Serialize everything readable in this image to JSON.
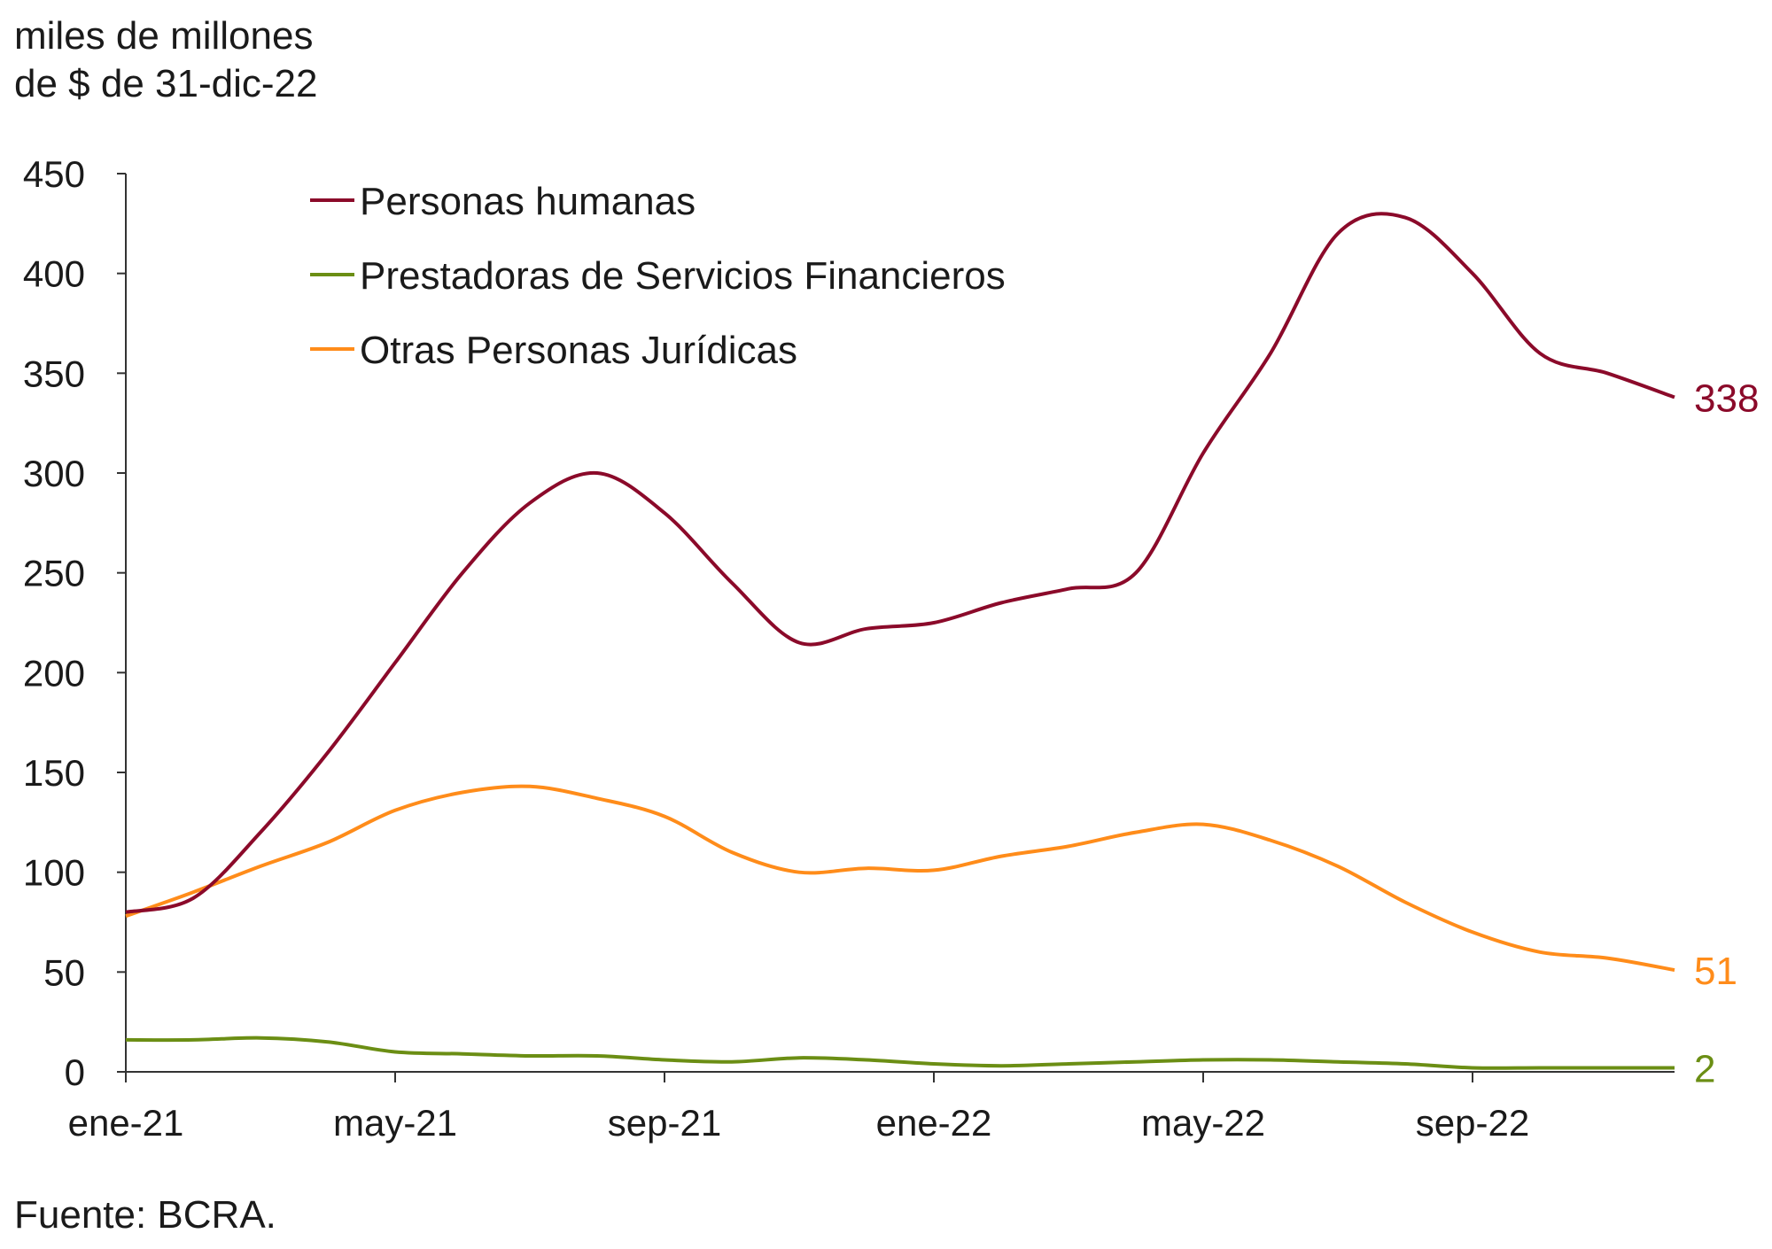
{
  "chart_data": {
    "type": "line",
    "unit_label_line1": "miles de millones",
    "unit_label_line2": "de $ de 31-dic-22",
    "source": "Fuente: BCRA.",
    "ylim": [
      0,
      450
    ],
    "yticks": [
      0,
      50,
      100,
      150,
      200,
      250,
      300,
      350,
      400,
      450
    ],
    "x_start": "2021-01",
    "x_end": "2022-12",
    "xtick_labels": [
      "ene-21",
      "may-21",
      "sep-21",
      "ene-22",
      "may-22",
      "sep-22"
    ],
    "grid": false,
    "legend_position": "top-left",
    "x": [
      "ene-21",
      "feb-21",
      "mar-21",
      "abr-21",
      "may-21",
      "jun-21",
      "jul-21",
      "ago-21",
      "sep-21",
      "oct-21",
      "nov-21",
      "dic-21",
      "ene-22",
      "feb-22",
      "mar-22",
      "abr-22",
      "may-22",
      "jun-22",
      "jul-22",
      "ago-22",
      "sep-22",
      "oct-22",
      "nov-22",
      "dic-22"
    ],
    "series": [
      {
        "name": "Personas humanas",
        "color": "#8b0a2a",
        "end_label": "338",
        "values": [
          80,
          87,
          120,
          160,
          205,
          250,
          285,
          300,
          280,
          245,
          215,
          222,
          225,
          235,
          242,
          250,
          310,
          360,
          420,
          428,
          400,
          360,
          350,
          338
        ]
      },
      {
        "name": "Prestadoras de Servicios Financieros",
        "color": "#6b8e14",
        "end_label": "2",
        "values": [
          16,
          16,
          17,
          15,
          10,
          9,
          8,
          8,
          6,
          5,
          7,
          6,
          4,
          3,
          4,
          5,
          6,
          6,
          5,
          4,
          2,
          2,
          2,
          2
        ]
      },
      {
        "name": "Otras Personas Jurídicas",
        "color": "#ff8c1a",
        "end_label": "51",
        "values": [
          78,
          90,
          103,
          115,
          131,
          140,
          143,
          137,
          128,
          110,
          100,
          102,
          101,
          108,
          113,
          120,
          124,
          116,
          103,
          85,
          70,
          60,
          57,
          51
        ]
      }
    ]
  }
}
